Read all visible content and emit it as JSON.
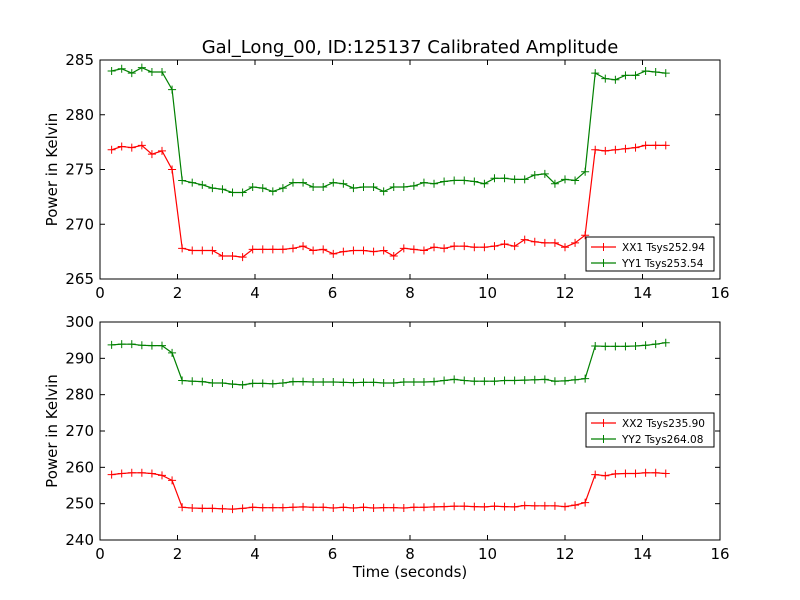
{
  "figure": {
    "title": "Gal_Long_00, ID:125137 Calibrated Amplitude"
  },
  "colors": {
    "xx": "#ff0000",
    "yy": "#008000",
    "axes": "#000000",
    "background": "#ffffff"
  },
  "chart_data": [
    {
      "type": "line",
      "title": "Gal_Long_00, ID:125137 Calibrated Amplitude",
      "xlabel": "",
      "ylabel": "Power in Kelvin",
      "xlim": [
        0,
        16
      ],
      "ylim": [
        265,
        285
      ],
      "xticks": [
        0,
        2,
        4,
        6,
        8,
        10,
        12,
        14,
        16
      ],
      "yticks": [
        265,
        270,
        275,
        280,
        285
      ],
      "grid": false,
      "legend_position": "lower-right",
      "marker": "plus",
      "series": [
        {
          "name": "XX1 Tsys252.94",
          "color": "#ff0000",
          "x": [
            0.3,
            0.56,
            0.82,
            1.08,
            1.34,
            1.6,
            1.86,
            2.12,
            2.38,
            2.64,
            2.9,
            3.16,
            3.42,
            3.68,
            3.94,
            4.2,
            4.46,
            4.72,
            4.98,
            5.24,
            5.5,
            5.76,
            6.02,
            6.28,
            6.54,
            6.8,
            7.06,
            7.32,
            7.58,
            7.84,
            8.1,
            8.36,
            8.62,
            8.88,
            9.14,
            9.4,
            9.66,
            9.92,
            10.18,
            10.44,
            10.7,
            10.96,
            11.22,
            11.48,
            11.74,
            12.0,
            12.26,
            12.52,
            12.78,
            13.04,
            13.3,
            13.56,
            13.82,
            14.08,
            14.34,
            14.6
          ],
          "y": [
            276.8,
            277.1,
            277.0,
            277.2,
            276.4,
            276.7,
            275.0,
            267.8,
            267.6,
            267.6,
            267.6,
            267.1,
            267.1,
            267.0,
            267.7,
            267.7,
            267.7,
            267.7,
            267.8,
            268.0,
            267.6,
            267.7,
            267.3,
            267.5,
            267.6,
            267.6,
            267.5,
            267.6,
            267.1,
            267.8,
            267.7,
            267.6,
            267.9,
            267.8,
            268.0,
            268.0,
            267.9,
            267.9,
            268.0,
            268.2,
            268.0,
            268.6,
            268.4,
            268.3,
            268.3,
            267.9,
            268.3,
            269.0,
            276.8,
            276.7,
            276.8,
            276.9,
            277.0,
            277.2,
            277.2,
            277.2
          ]
        },
        {
          "name": "YY1 Tsys253.54",
          "color": "#008000",
          "x": [
            0.3,
            0.56,
            0.82,
            1.08,
            1.34,
            1.6,
            1.86,
            2.12,
            2.38,
            2.64,
            2.9,
            3.16,
            3.42,
            3.68,
            3.94,
            4.2,
            4.46,
            4.72,
            4.98,
            5.24,
            5.5,
            5.76,
            6.02,
            6.28,
            6.54,
            6.8,
            7.06,
            7.32,
            7.58,
            7.84,
            8.1,
            8.36,
            8.62,
            8.88,
            9.14,
            9.4,
            9.66,
            9.92,
            10.18,
            10.44,
            10.7,
            10.96,
            11.22,
            11.48,
            11.74,
            12.0,
            12.26,
            12.52,
            12.78,
            13.04,
            13.3,
            13.56,
            13.82,
            14.08,
            14.34,
            14.6
          ],
          "y": [
            284.0,
            284.2,
            283.8,
            284.3,
            283.9,
            283.9,
            282.3,
            274.0,
            273.8,
            273.6,
            273.3,
            273.2,
            272.9,
            272.9,
            273.4,
            273.3,
            273.0,
            273.3,
            273.8,
            273.8,
            273.4,
            273.4,
            273.8,
            273.7,
            273.3,
            273.4,
            273.4,
            273.0,
            273.4,
            273.4,
            273.5,
            273.8,
            273.7,
            273.9,
            274.0,
            274.0,
            273.9,
            273.7,
            274.2,
            274.2,
            274.1,
            274.1,
            274.5,
            274.6,
            273.7,
            274.1,
            274.0,
            274.8,
            283.8,
            283.3,
            283.2,
            283.6,
            283.6,
            284.0,
            283.9,
            283.8
          ]
        }
      ]
    },
    {
      "type": "line",
      "title": "",
      "xlabel": "Time (seconds)",
      "ylabel": "Power in Kelvin",
      "xlim": [
        0,
        16
      ],
      "ylim": [
        240,
        300
      ],
      "xticks": [
        0,
        2,
        4,
        6,
        8,
        10,
        12,
        14,
        16
      ],
      "yticks": [
        240,
        250,
        260,
        270,
        280,
        290,
        300
      ],
      "grid": false,
      "legend_position": "center-right",
      "marker": "plus",
      "series": [
        {
          "name": "XX2 Tsys235.90",
          "color": "#ff0000",
          "x": [
            0.3,
            0.56,
            0.82,
            1.08,
            1.34,
            1.6,
            1.86,
            2.12,
            2.38,
            2.64,
            2.9,
            3.16,
            3.42,
            3.68,
            3.94,
            4.2,
            4.46,
            4.72,
            4.98,
            5.24,
            5.5,
            5.76,
            6.02,
            6.28,
            6.54,
            6.8,
            7.06,
            7.32,
            7.58,
            7.84,
            8.1,
            8.36,
            8.62,
            8.88,
            9.14,
            9.4,
            9.66,
            9.92,
            10.18,
            10.44,
            10.7,
            10.96,
            11.22,
            11.48,
            11.74,
            12.0,
            12.26,
            12.52,
            12.78,
            13.04,
            13.3,
            13.56,
            13.82,
            14.08,
            14.34,
            14.6
          ],
          "y": [
            258.0,
            258.3,
            258.5,
            258.5,
            258.3,
            257.8,
            256.4,
            249.0,
            248.8,
            248.7,
            248.7,
            248.6,
            248.5,
            248.7,
            249.0,
            248.9,
            248.9,
            248.9,
            249.0,
            249.1,
            249.0,
            249.0,
            248.8,
            249.0,
            248.8,
            249.0,
            248.8,
            248.9,
            248.9,
            248.8,
            249.0,
            249.0,
            249.1,
            249.2,
            249.3,
            249.3,
            249.2,
            249.1,
            249.3,
            249.2,
            249.1,
            249.5,
            249.4,
            249.4,
            249.4,
            249.2,
            249.6,
            250.3,
            258.0,
            257.7,
            258.2,
            258.3,
            258.3,
            258.5,
            258.5,
            258.3
          ]
        },
        {
          "name": "YY2 Tsys264.08",
          "color": "#008000",
          "x": [
            0.3,
            0.56,
            0.82,
            1.08,
            1.34,
            1.6,
            1.86,
            2.12,
            2.38,
            2.64,
            2.9,
            3.16,
            3.42,
            3.68,
            3.94,
            4.2,
            4.46,
            4.72,
            4.98,
            5.24,
            5.5,
            5.76,
            6.02,
            6.28,
            6.54,
            6.8,
            7.06,
            7.32,
            7.58,
            7.84,
            8.1,
            8.36,
            8.62,
            8.88,
            9.14,
            9.4,
            9.66,
            9.92,
            10.18,
            10.44,
            10.7,
            10.96,
            11.22,
            11.48,
            11.74,
            12.0,
            12.26,
            12.52,
            12.78,
            13.04,
            13.3,
            13.56,
            13.82,
            14.08,
            14.34,
            14.6
          ],
          "y": [
            293.7,
            293.9,
            293.9,
            293.6,
            293.5,
            293.5,
            291.5,
            283.9,
            283.7,
            283.6,
            283.2,
            283.2,
            282.9,
            282.7,
            283.1,
            283.1,
            283.0,
            283.2,
            283.6,
            283.6,
            283.5,
            283.5,
            283.5,
            283.4,
            283.3,
            283.4,
            283.4,
            283.2,
            283.2,
            283.5,
            283.5,
            283.5,
            283.6,
            283.9,
            284.2,
            283.9,
            283.7,
            283.7,
            283.7,
            283.9,
            283.9,
            284.0,
            284.1,
            284.2,
            283.7,
            283.8,
            284.1,
            284.4,
            293.4,
            293.3,
            293.3,
            293.3,
            293.4,
            293.6,
            293.9,
            294.3
          ]
        }
      ]
    }
  ]
}
